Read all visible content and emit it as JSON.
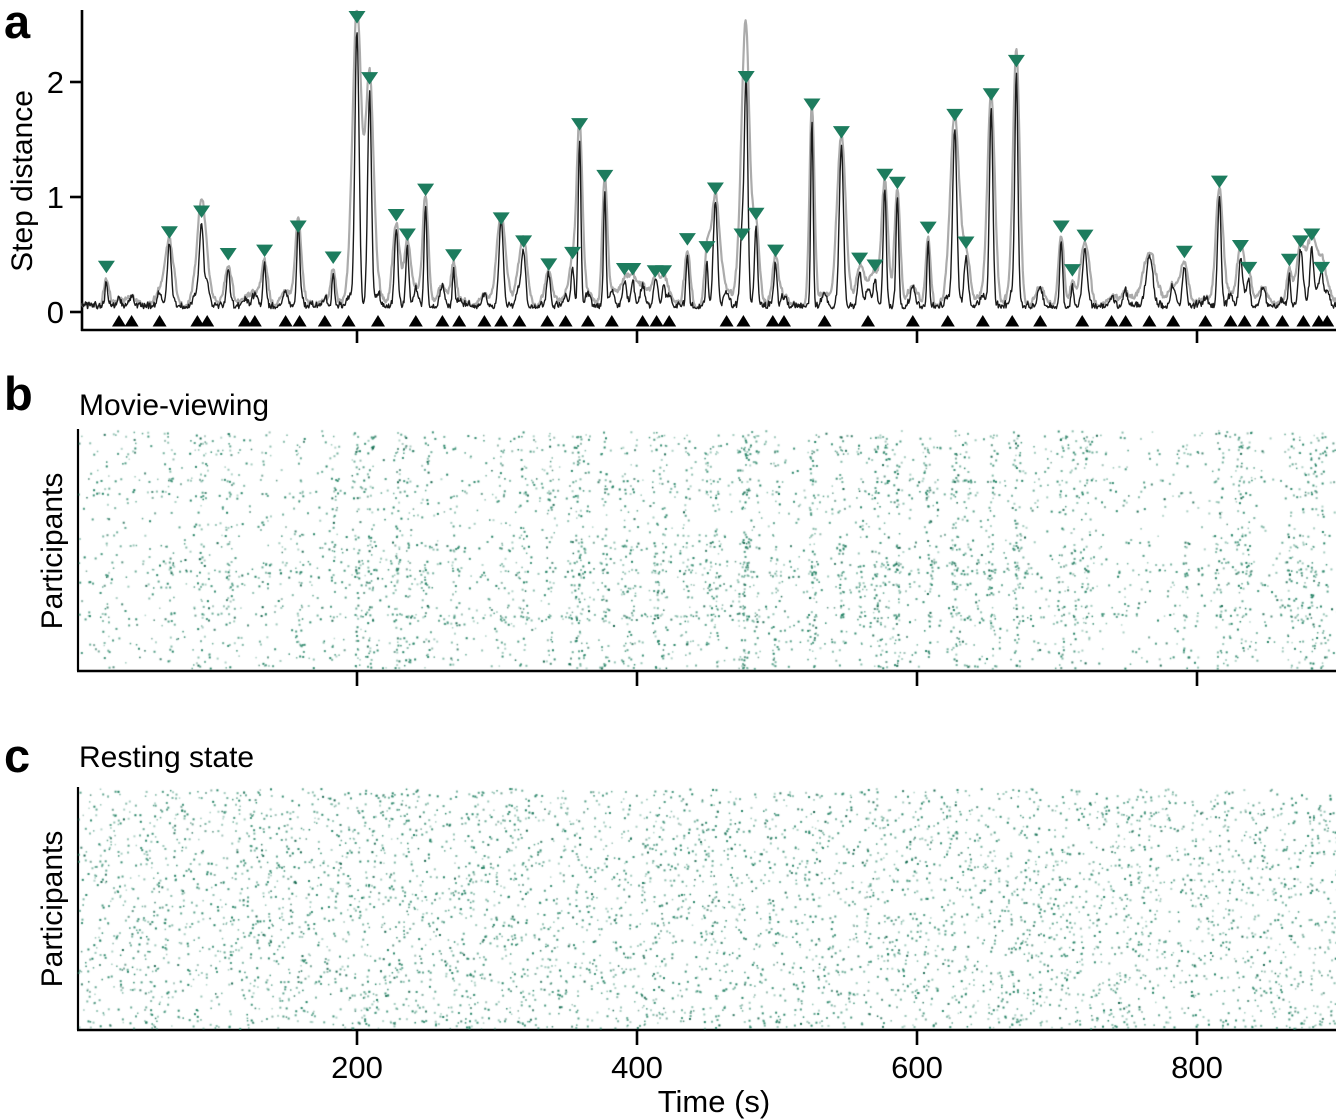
{
  "figure": {
    "colors": {
      "marker_green": "#1d7c5e",
      "dot_green_rgb": "35,130,100",
      "dot_green_dark_rgb": "20,100,75",
      "trace_black": "#1a1a1a",
      "trace_gray": "#ababab",
      "axis_black": "#000000"
    }
  },
  "panel_a": {
    "label": "a",
    "ylabel": "Step distance",
    "yticks": [
      "0",
      "1",
      "2"
    ]
  },
  "panel_b": {
    "label": "b",
    "title": "Movie-viewing",
    "ylabel": "Participants"
  },
  "panel_c": {
    "label": "c",
    "title": "Resting state",
    "ylabel": "Participants"
  },
  "x_axis": {
    "label": "Time (s)",
    "range_s": [
      0,
      900
    ],
    "ticks": [
      {
        "value": 200,
        "label": "200"
      },
      {
        "value": 400,
        "label": "400"
      },
      {
        "value": 600,
        "label": "600"
      },
      {
        "value": 800,
        "label": "800"
      }
    ]
  },
  "chart_data": [
    {
      "type": "line",
      "panel": "a",
      "ylabel": "Step distance",
      "xlabel": "Time (s)",
      "xlim": [
        0,
        900
      ],
      "ylim": [
        0,
        2.6
      ],
      "yticks": [
        0,
        1,
        2
      ],
      "xticks": [
        200,
        400,
        600,
        800
      ],
      "description": "Head-motion step distance over time; green downward triangles mark detected movement peaks, black upward triangles on the axis mark annotated events.",
      "marked_peaks": [
        [
          21,
          0.22
        ],
        [
          66,
          0.52
        ],
        [
          89,
          0.7
        ],
        [
          108,
          0.33
        ],
        [
          134,
          0.36
        ],
        [
          158,
          0.57
        ],
        [
          183,
          0.3
        ],
        [
          200,
          2.4
        ],
        [
          209,
          1.86
        ],
        [
          228,
          0.67
        ],
        [
          236,
          0.5
        ],
        [
          249,
          0.89
        ],
        [
          269,
          0.32
        ],
        [
          303,
          0.64
        ],
        [
          319,
          0.44
        ],
        [
          337,
          0.24
        ],
        [
          354,
          0.34
        ],
        [
          359,
          1.46
        ],
        [
          377,
          1.01
        ],
        [
          391,
          0.2
        ],
        [
          397,
          0.2
        ],
        [
          413,
          0.18
        ],
        [
          419,
          0.18
        ],
        [
          436,
          0.46
        ],
        [
          450,
          0.39
        ],
        [
          456,
          0.9
        ],
        [
          475,
          0.5
        ],
        [
          478,
          1.87
        ],
        [
          485,
          0.68
        ],
        [
          499,
          0.36
        ],
        [
          525,
          1.63
        ],
        [
          546,
          1.39
        ],
        [
          559,
          0.29
        ],
        [
          570,
          0.23
        ],
        [
          577,
          1.02
        ],
        [
          586,
          0.95
        ],
        [
          608,
          0.56
        ],
        [
          627,
          1.54
        ],
        [
          635,
          0.43
        ],
        [
          653,
          1.72
        ],
        [
          671,
          2.01
        ],
        [
          703,
          0.57
        ],
        [
          711,
          0.19
        ],
        [
          720,
          0.49
        ],
        [
          791,
          0.35
        ],
        [
          816,
          0.96
        ],
        [
          831,
          0.4
        ],
        [
          837,
          0.21
        ],
        [
          866,
          0.28
        ],
        [
          874,
          0.44
        ],
        [
          882,
          0.5
        ],
        [
          889,
          0.21
        ]
      ],
      "event_marker_times": [
        30,
        39,
        59,
        86,
        93,
        120,
        127,
        149,
        159,
        177,
        194,
        215,
        242,
        261,
        273,
        291,
        303,
        316,
        336,
        349,
        365,
        382,
        404,
        414,
        423,
        464,
        476,
        497,
        505,
        534,
        565,
        597,
        622,
        647,
        668,
        688,
        718,
        739,
        749,
        766,
        783,
        806,
        824,
        834,
        847,
        861,
        876,
        887,
        893
      ],
      "unmarked_bumps": [
        [
          766,
          0.3
        ]
      ]
    },
    {
      "type": "scatter",
      "panel": "b",
      "title": "Movie-viewing",
      "ylabel": "Participants",
      "xlim": [
        0,
        900
      ],
      "n_points": 4600,
      "pattern": "individual movement events; dots cluster into vertical bands at shared movement-peak times"
    },
    {
      "type": "scatter",
      "panel": "c",
      "title": "Resting state",
      "ylabel": "Participants",
      "xlim": [
        0,
        900
      ],
      "n_points": 5200,
      "pattern": "individual movement events; uniform random scatter, no vertical banding"
    }
  ]
}
